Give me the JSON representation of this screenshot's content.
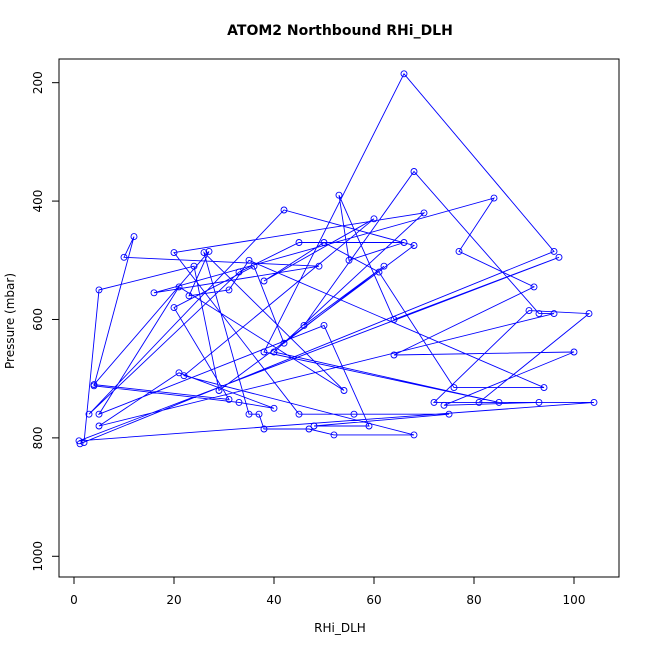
{
  "chart_data": {
    "type": "line",
    "title": "ATOM2 Northbound RHi_DLH",
    "xlabel": "RHi_DLH",
    "ylabel": "Pressure (mbar)",
    "xlim": [
      -3,
      109
    ],
    "ylim": [
      1035,
      160
    ],
    "y_reversed": true,
    "x_ticks": [
      0,
      20,
      40,
      60,
      80,
      100
    ],
    "y_ticks": [
      200,
      400,
      600,
      800,
      1000
    ],
    "grid": false,
    "legend": "none",
    "colors": {
      "series": "#0000ff",
      "axes": "#000000",
      "background": "#ffffff"
    },
    "series": [
      {
        "points": [
          [
            1.2,
            810
          ],
          [
            96,
            485
          ],
          [
            66,
            185
          ],
          [
            38,
            655
          ],
          [
            85,
            740
          ],
          [
            40,
            655
          ],
          [
            70,
            420
          ],
          [
            20,
            487
          ],
          [
            45,
            760
          ],
          [
            56,
            760
          ],
          [
            75,
            760
          ],
          [
            48,
            780
          ],
          [
            59,
            780
          ],
          [
            50,
            610
          ],
          [
            5,
            760
          ],
          [
            21,
            545
          ],
          [
            54,
            720
          ],
          [
            26,
            487
          ],
          [
            35,
            760
          ],
          [
            37,
            760
          ],
          [
            38,
            785
          ],
          [
            47,
            785
          ],
          [
            52,
            795
          ],
          [
            68,
            795
          ],
          [
            22,
            695
          ],
          [
            60,
            430
          ],
          [
            38,
            535
          ],
          [
            50,
            470
          ],
          [
            61,
            520
          ],
          [
            76,
            715
          ],
          [
            94,
            715
          ],
          [
            35,
            500
          ],
          [
            31,
            550
          ],
          [
            23,
            560
          ],
          [
            27,
            485
          ],
          [
            4,
            710
          ],
          [
            31,
            735
          ],
          [
            20,
            580
          ],
          [
            36,
            510
          ],
          [
            42,
            640
          ],
          [
            62,
            510
          ],
          [
            46,
            610
          ],
          [
            68,
            350
          ],
          [
            93,
            590
          ],
          [
            96,
            590
          ],
          [
            5,
            780
          ],
          [
            21,
            690
          ],
          [
            40,
            750
          ],
          [
            33,
            740
          ],
          [
            4,
            712
          ],
          [
            12,
            460
          ],
          [
            10,
            495
          ],
          [
            49,
            510
          ],
          [
            16,
            555
          ],
          [
            84,
            395
          ],
          [
            77,
            485
          ],
          [
            92,
            545
          ],
          [
            64,
            660
          ],
          [
            100,
            655
          ],
          [
            74,
            745
          ],
          [
            93,
            740
          ],
          [
            81,
            740
          ],
          [
            103,
            590
          ],
          [
            91,
            585
          ],
          [
            72,
            740
          ],
          [
            104,
            740
          ],
          [
            1,
            805
          ],
          [
            97,
            495
          ],
          [
            64,
            600
          ],
          [
            53,
            390
          ],
          [
            55,
            500
          ],
          [
            66,
            470
          ],
          [
            45,
            470
          ],
          [
            33,
            520
          ],
          [
            3,
            760
          ],
          [
            42,
            415
          ],
          [
            68,
            475
          ],
          [
            29,
            720
          ],
          [
            24,
            510
          ],
          [
            5,
            550
          ],
          [
            2,
            808
          ]
        ]
      }
    ]
  }
}
